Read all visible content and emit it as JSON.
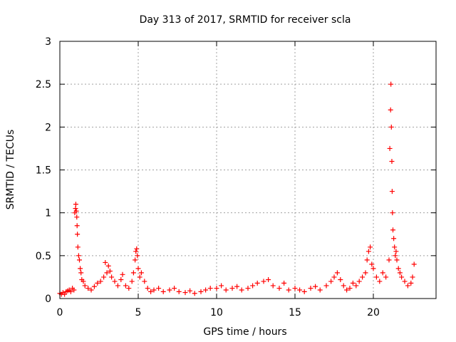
{
  "chart_data": {
    "type": "scatter",
    "title": "Day 313 of 2017, SRMTID for receiver scla",
    "xlabel": "GPS time / hours",
    "ylabel": "SRMTID / TECUs",
    "xlim": [
      0,
      24
    ],
    "ylim": [
      0,
      3
    ],
    "xticks": [
      0,
      5,
      10,
      15,
      20
    ],
    "xtick_labels": [
      "0",
      "5",
      "10",
      "15",
      "20"
    ],
    "yticks": [
      0,
      0.5,
      1,
      1.5,
      2,
      2.5,
      3
    ],
    "ytick_labels": [
      "0",
      "0.5",
      "1",
      "1.5",
      "2",
      "2.5",
      "3"
    ],
    "grid": true,
    "marker": "plus",
    "series_color": "#ff0000",
    "series": [
      {
        "name": "SRMTID",
        "x": [
          0.0,
          0.1,
          0.2,
          0.3,
          0.4,
          0.5,
          0.6,
          0.7,
          0.8,
          0.9,
          0.95,
          1.0,
          1.02,
          1.05,
          1.08,
          1.1,
          1.12,
          1.15,
          1.2,
          1.25,
          1.3,
          1.35,
          1.4,
          1.5,
          1.6,
          1.8,
          2.0,
          2.2,
          2.4,
          2.6,
          2.8,
          2.9,
          3.0,
          3.1,
          3.2,
          3.3,
          3.5,
          3.7,
          3.9,
          4.0,
          4.2,
          4.4,
          4.6,
          4.7,
          4.8,
          4.85,
          4.9,
          4.95,
          5.0,
          5.1,
          5.2,
          5.4,
          5.6,
          5.8,
          6.0,
          6.3,
          6.6,
          7.0,
          7.3,
          7.6,
          8.0,
          8.3,
          8.6,
          9.0,
          9.3,
          9.6,
          10.0,
          10.3,
          10.6,
          11.0,
          11.3,
          11.6,
          12.0,
          12.3,
          12.6,
          13.0,
          13.3,
          13.6,
          14.0,
          14.3,
          14.6,
          15.0,
          15.3,
          15.6,
          16.0,
          16.3,
          16.6,
          17.0,
          17.3,
          17.5,
          17.7,
          17.9,
          18.1,
          18.3,
          18.5,
          18.7,
          18.9,
          19.1,
          19.3,
          19.5,
          19.6,
          19.7,
          19.8,
          19.9,
          20.0,
          20.2,
          20.4,
          20.6,
          20.8,
          21.0,
          21.05,
          21.1,
          21.12,
          21.15,
          21.18,
          21.2,
          21.22,
          21.25,
          21.3,
          21.35,
          21.4,
          21.45,
          21.5,
          21.6,
          21.7,
          21.8,
          22.0,
          22.2,
          22.4,
          22.5,
          22.6
        ],
        "y": [
          0.06,
          0.05,
          0.07,
          0.05,
          0.08,
          0.09,
          0.1,
          0.08,
          0.12,
          0.1,
          1.0,
          1.05,
          1.1,
          1.02,
          0.95,
          0.85,
          0.75,
          0.6,
          0.5,
          0.45,
          0.35,
          0.3,
          0.22,
          0.2,
          0.15,
          0.12,
          0.1,
          0.14,
          0.18,
          0.2,
          0.25,
          0.42,
          0.3,
          0.38,
          0.32,
          0.25,
          0.2,
          0.15,
          0.22,
          0.28,
          0.15,
          0.12,
          0.2,
          0.3,
          0.45,
          0.55,
          0.58,
          0.5,
          0.35,
          0.25,
          0.3,
          0.2,
          0.12,
          0.08,
          0.1,
          0.12,
          0.08,
          0.1,
          0.12,
          0.08,
          0.07,
          0.09,
          0.06,
          0.08,
          0.1,
          0.12,
          0.12,
          0.15,
          0.1,
          0.12,
          0.14,
          0.1,
          0.12,
          0.15,
          0.18,
          0.2,
          0.22,
          0.15,
          0.12,
          0.18,
          0.1,
          0.12,
          0.1,
          0.08,
          0.12,
          0.14,
          0.1,
          0.15,
          0.2,
          0.25,
          0.3,
          0.22,
          0.15,
          0.1,
          0.12,
          0.18,
          0.15,
          0.2,
          0.25,
          0.3,
          0.45,
          0.55,
          0.6,
          0.4,
          0.35,
          0.25,
          0.2,
          0.3,
          0.25,
          0.45,
          1.75,
          2.2,
          2.5,
          2.0,
          1.6,
          1.25,
          1.0,
          0.8,
          0.7,
          0.6,
          0.5,
          0.55,
          0.45,
          0.35,
          0.3,
          0.25,
          0.2,
          0.15,
          0.18,
          0.25,
          0.4
        ]
      }
    ]
  }
}
